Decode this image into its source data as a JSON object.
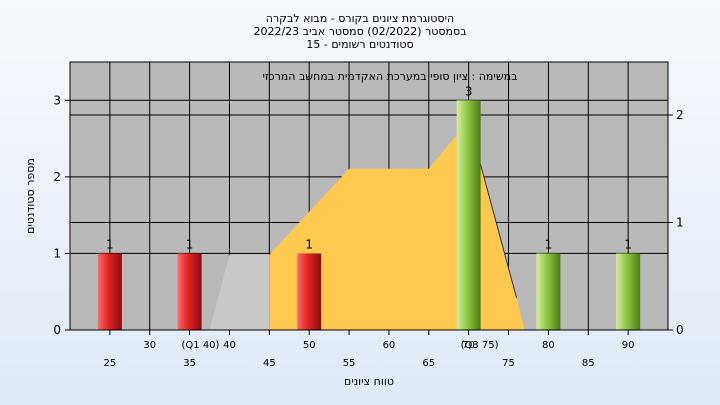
{
  "header": {
    "line1": "היסטוגרמת ציונים בקורס - מבוא לבקרה",
    "line2": "בסמסטר  (02/2022)  סמסטר אביב 2022/23",
    "line3": "סטודנטים רשומים - 15"
  },
  "chart_data": {
    "type": "bar",
    "title": "במשימה : ציון סופי במערכת האקדמית במחשב המרכזי",
    "xlabel": "טווח ציונים",
    "ylabel": "מספר סטודנטים",
    "x_ticks_lower": [
      "25",
      "35",
      "45",
      "55",
      "65",
      "75",
      "85"
    ],
    "x_ticks_upper": [
      "30",
      "40",
      "50",
      "60",
      "70",
      "80",
      "90"
    ],
    "quartile_labels": [
      {
        "text": "(Q1 40)",
        "x": 40
      },
      {
        "text": "(Q3 75)",
        "x": 75
      }
    ],
    "ylim": [
      0,
      3.5
    ],
    "y_ticks": [
      0,
      1,
      2,
      3
    ],
    "y2_ticks": [
      0,
      1,
      2
    ],
    "y2lim": [
      0,
      2.0
    ],
    "bars": [
      {
        "x": 25,
        "value": 1,
        "label": "1",
        "color": "#dd2020"
      },
      {
        "x": 35,
        "value": 1,
        "label": "1",
        "color": "#dd2020"
      },
      {
        "x": 50,
        "value": 1,
        "label": "1",
        "color": "#dd2020"
      },
      {
        "x": 70,
        "value": 3,
        "label": "3",
        "color": "#8dc63f"
      },
      {
        "x": 80,
        "value": 1,
        "label": "1",
        "color": "#8dc63f"
      },
      {
        "x": 90,
        "value": 1,
        "label": "1",
        "color": "#8dc63f"
      }
    ],
    "iqr_box": [
      {
        "x": 37.5,
        "y": 0
      },
      {
        "x": 40,
        "y": 0.7
      },
      {
        "x": 45,
        "y": 0.7
      },
      {
        "x": 45,
        "y": 0
      }
    ],
    "distribution_area": [
      {
        "x": 45,
        "y": 0
      },
      {
        "x": 45,
        "y": 0.7
      },
      {
        "x": 55,
        "y": 1.5
      },
      {
        "x": 65,
        "y": 1.5
      },
      {
        "x": 70,
        "y": 1.95
      },
      {
        "x": 76,
        "y": 0.3
      },
      {
        "x": 77,
        "y": 0
      }
    ],
    "colors": {
      "plot_bg": "#b9b9b9",
      "grid": "#000000",
      "area": "#ffc94f",
      "iqr": "#c8c8c8"
    },
    "grid": true
  }
}
